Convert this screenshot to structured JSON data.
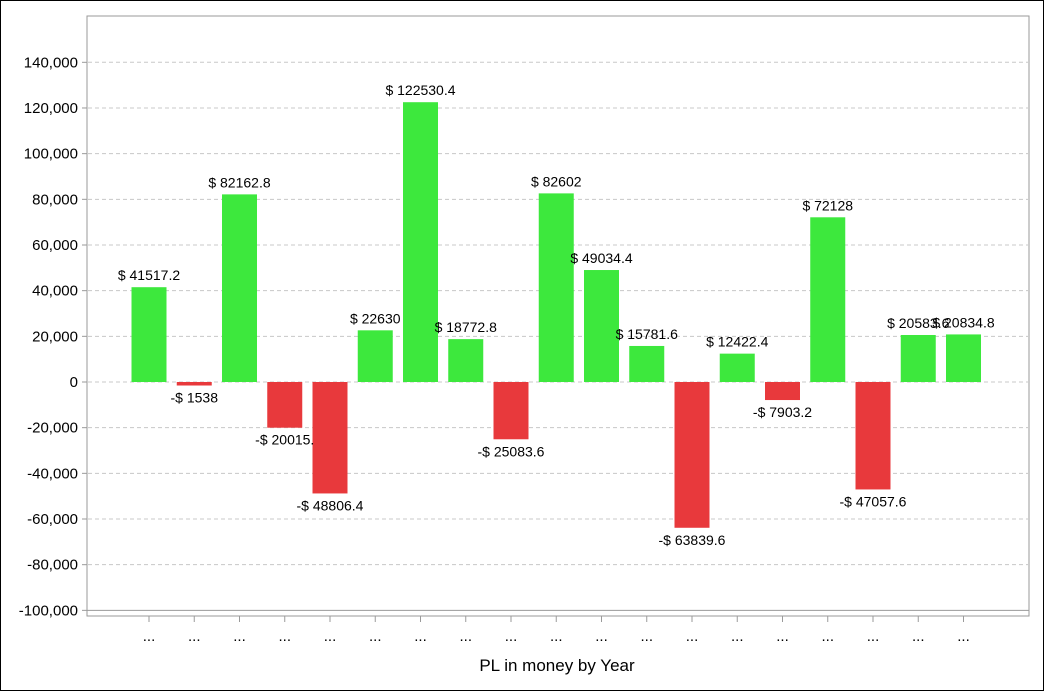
{
  "chart_data": {
    "type": "bar",
    "title": "",
    "xlabel": "PL in money by Year",
    "ylabel": "",
    "ylim": [
      -100000,
      150000
    ],
    "y_ticks": [
      -100000,
      -80000,
      -60000,
      -40000,
      -20000,
      0,
      20000,
      40000,
      60000,
      80000,
      100000,
      120000,
      140000
    ],
    "y_tick_labels": [
      "-100,000",
      "-80,000",
      "-60,000",
      "-40,000",
      "-20,000",
      "0",
      "20,000",
      "40,000",
      "60,000",
      "80,000",
      "100,000",
      "120,000",
      "140,000"
    ],
    "grid": true,
    "categories": [
      "...",
      "...",
      "...",
      "...",
      "...",
      "...",
      "...",
      "...",
      "...",
      "...",
      "...",
      "...",
      "...",
      "...",
      "...",
      "...",
      "...",
      "...",
      "..."
    ],
    "values": [
      41517.2,
      -1538,
      82162.8,
      -20015.2,
      -48806.4,
      22630,
      122530.4,
      18772.8,
      -25083.6,
      82602,
      49034.4,
      15781.6,
      -63839.6,
      12422.4,
      -7903.2,
      72128,
      -47057.6,
      20583.6,
      20834.8
    ],
    "data_labels": [
      "$ 41517.2",
      "-$ 1538",
      "$ 82162.8",
      "-$ 20015.",
      "-$ 48806.4",
      "$ 22630",
      "$ 122530.4",
      "$ 18772.8",
      "-$ 25083.6",
      "$ 82602",
      "$ 49034.4",
      "$ 15781.6",
      "-$ 63839.6",
      "$ 12422.4",
      "-$ 7903.2",
      "$ 72128",
      "-$ 47057.6",
      "$ 20583.6",
      "$ 20834.8"
    ],
    "colors": {
      "positive": "#3de83d",
      "negative": "#e8393c",
      "grid": "#c8c8c8",
      "axis": "#9a9a9a"
    }
  }
}
